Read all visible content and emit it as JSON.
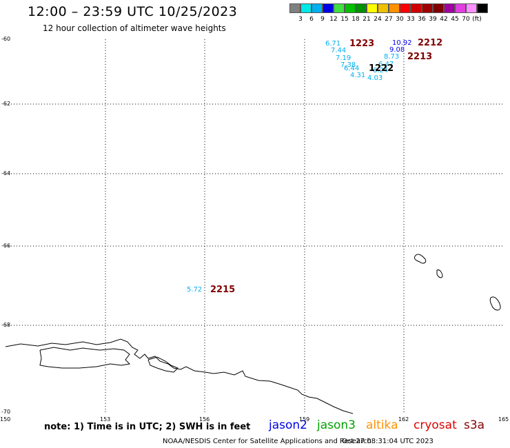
{
  "header": {
    "title": "12:00 – 23:59 UTC 10/25/2023",
    "subtitle": "12 hour collection of altimeter wave heights"
  },
  "legend": {
    "colors": [
      "#808080",
      "#00e8e8",
      "#00b0f0",
      "#0000e8",
      "#40e040",
      "#00c000",
      "#009000",
      "#ffff00",
      "#f0c000",
      "#ff9000",
      "#ff0000",
      "#d00000",
      "#a00000",
      "#800000",
      "#a000a0",
      "#e040e0",
      "#ff90ff",
      "#000000"
    ],
    "labels": [
      "3",
      "6",
      "9",
      "12",
      "15",
      "18",
      "21",
      "24",
      "27",
      "30",
      "33",
      "36",
      "39",
      "42",
      "45",
      "70",
      "(ft)"
    ]
  },
  "axes": {
    "x_ticks": [
      "150",
      "153",
      "156",
      "159",
      "162",
      "165"
    ],
    "y_ticks": [
      "-60",
      "-62",
      "-64",
      "-66",
      "-68",
      "-70"
    ]
  },
  "observations": [
    {
      "value": "6.71",
      "color": "#00b0f0"
    },
    {
      "value": "7.44",
      "color": "#00b0f0"
    },
    {
      "value": "7.19",
      "color": "#00b0f0"
    },
    {
      "value": "7.38",
      "color": "#00b0f0"
    },
    {
      "value": "6.44",
      "color": "#00b0f0"
    },
    {
      "value": "4.31",
      "color": "#00b0f0"
    },
    {
      "value": "4.03",
      "color": "#00b0f0"
    },
    {
      "value": "6.24",
      "color": "#00b0f0"
    },
    {
      "value": "6.47",
      "color": "#00b0f0"
    },
    {
      "value": "8.73",
      "color": "#00b0f0"
    },
    {
      "value": "9.08",
      "color": "#0000e8"
    },
    {
      "value": "10.92",
      "color": "#0000e8"
    },
    {
      "value": "5.72",
      "color": "#00b0f0"
    }
  ],
  "time_labels": [
    {
      "value": "1223",
      "color": "#800000"
    },
    {
      "value": "1222",
      "color": "#000000"
    },
    {
      "value": "2212",
      "color": "#800000"
    },
    {
      "value": "2213",
      "color": "#800000"
    },
    {
      "value": "2215",
      "color": "#800000"
    }
  ],
  "footer": {
    "note": "note: 1) Time is in UTC; 2) SWH is in feet",
    "satellites": [
      {
        "name": "jason2",
        "color": "#0000e8"
      },
      {
        "name": "jason3",
        "color": "#00a000"
      },
      {
        "name": "altika",
        "color": "#ff9000"
      },
      {
        "name": "cryosat",
        "color": "#e00000"
      },
      {
        "name": "s3a",
        "color": "#800000"
      }
    ],
    "credit": "NOAA/NESDIS Center for Satellite Applications and Research",
    "generated": "Oct 27 08:31:04 UTC 2023"
  }
}
